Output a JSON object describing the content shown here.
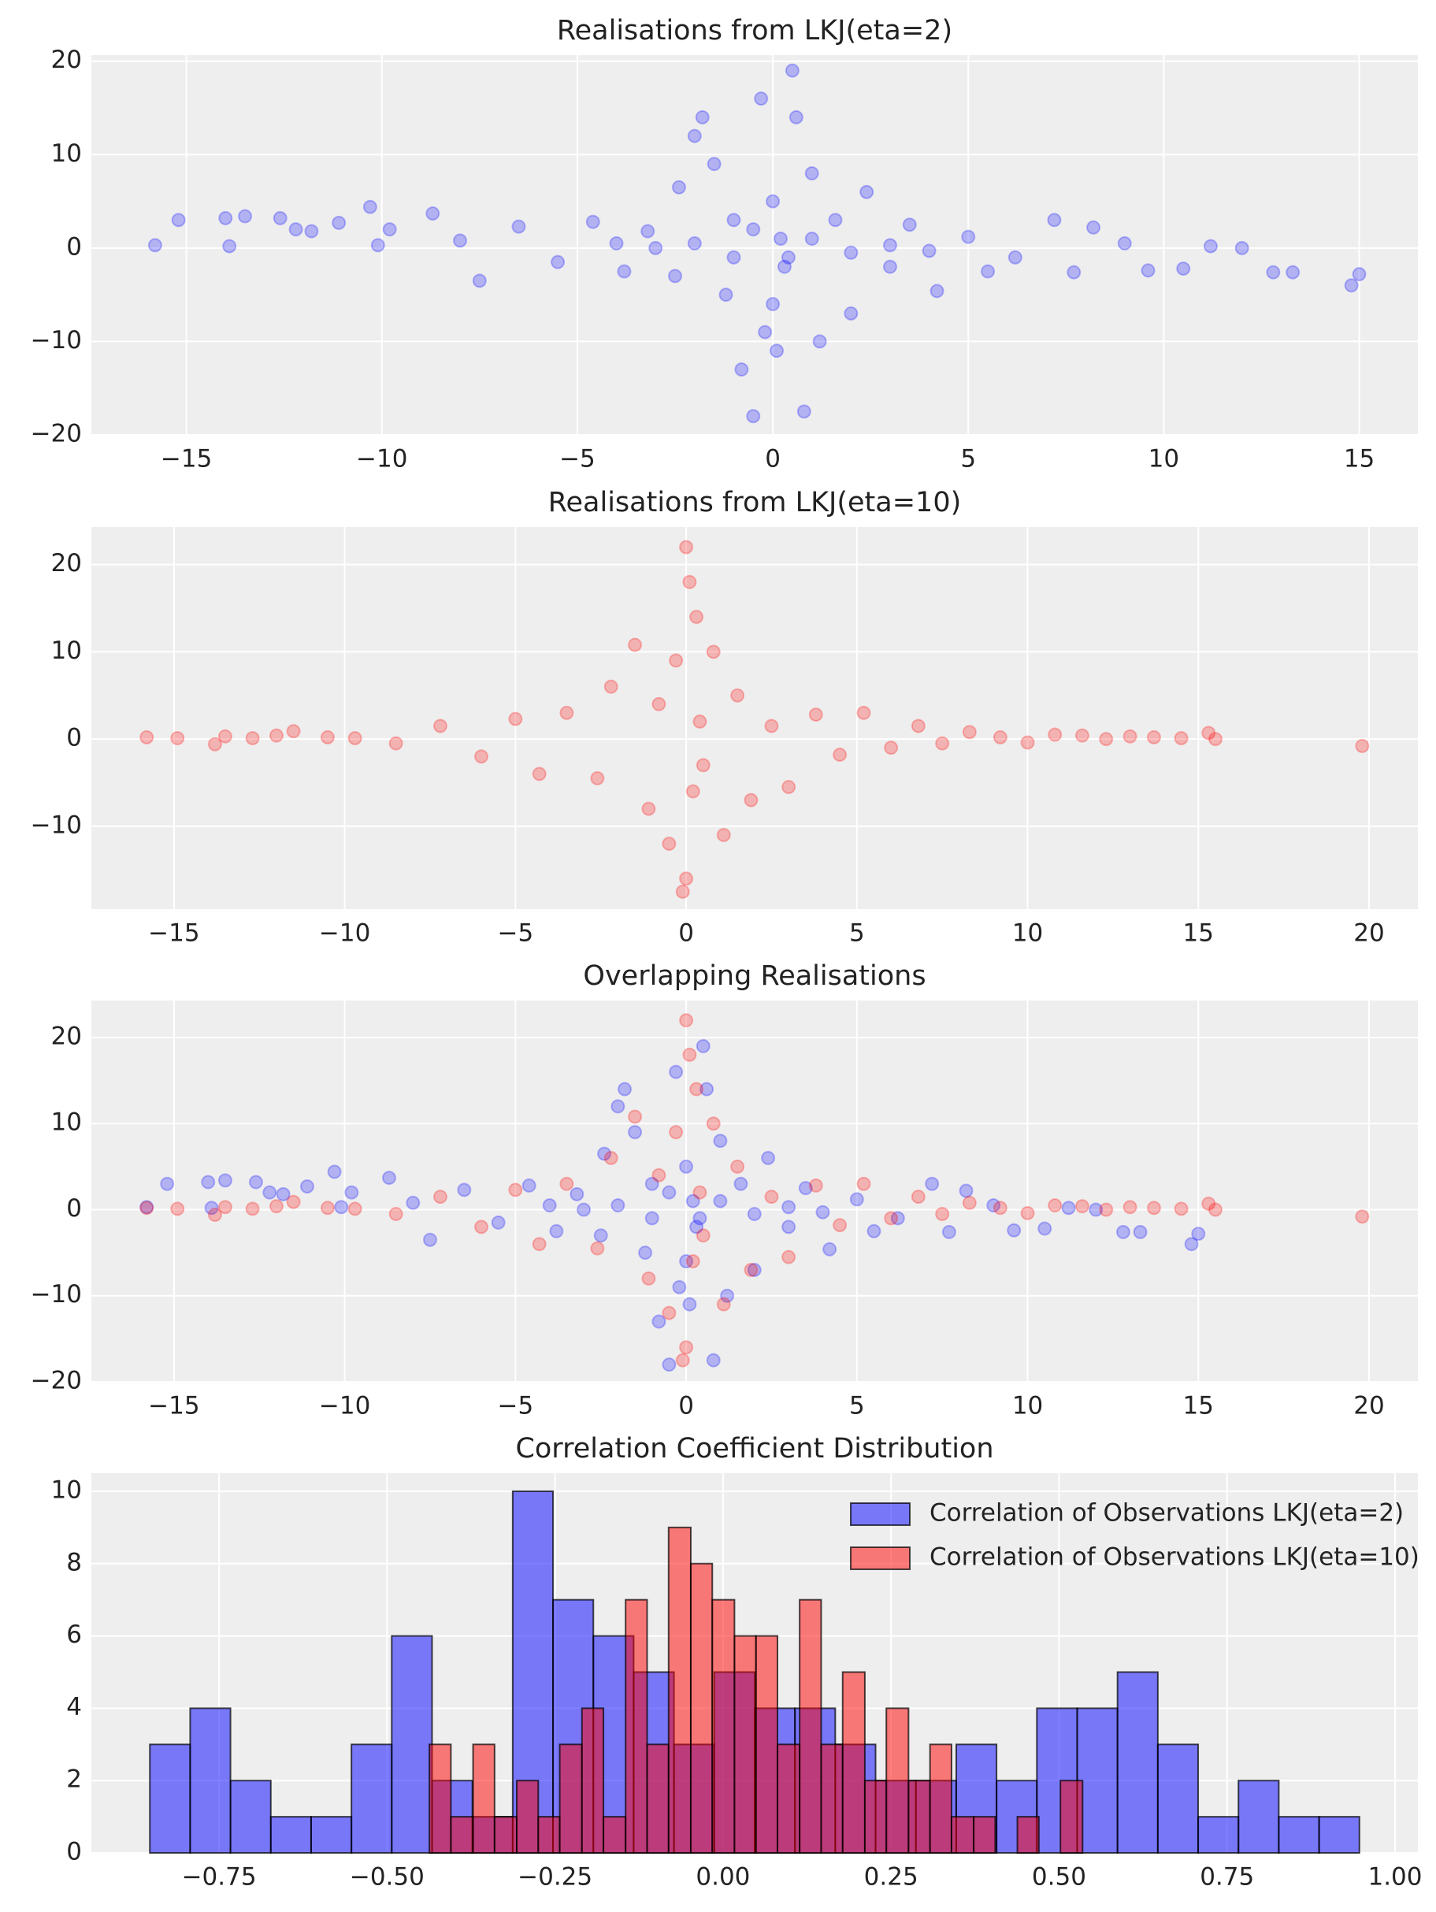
{
  "chart_data": [
    {
      "type": "scatter",
      "title": "Realisations from LKJ(eta=2)",
      "alpha": 0.25,
      "xlim": [
        -17.43,
        16.5
      ],
      "xticks": [
        {
          "value": -15,
          "label": "−15"
        },
        {
          "value": -10,
          "label": "−10"
        },
        {
          "value": -5,
          "label": "−5"
        },
        0,
        5,
        10,
        15
      ],
      "ylim": [
        -20,
        20.65
      ],
      "yticks": [
        {
          "value": -20,
          "label": "−20"
        },
        {
          "value": -10,
          "label": "−10"
        },
        0,
        10,
        20
      ],
      "grid": true,
      "series": [
        {
          "color": "#0000ff",
          "x": [
            -15.8,
            -15.2,
            -14,
            -13.9,
            -13.5,
            -12.6,
            -12.2,
            -11.8,
            -11.1,
            -10.3,
            -10.1,
            -9.8,
            -8.7,
            -8,
            -7.5,
            -6.5,
            -5.5,
            -4.6,
            -3.8,
            -3.2,
            -2.5,
            -2.4,
            -2,
            -1.8,
            -1.5,
            -1.2,
            -1,
            -0.8,
            -0.5,
            -0.3,
            -0.2,
            0,
            0,
            0.1,
            0.2,
            0.3,
            0.5,
            0.6,
            0.8,
            1,
            1.2,
            1.6,
            2,
            2.4,
            3,
            3.5,
            4.2,
            5,
            5.5,
            6.2,
            7.2,
            7.7,
            8.2,
            9,
            9.6,
            10.5,
            11.2,
            12,
            12.8,
            13.3,
            14.8,
            15,
            -0.5,
            0.4,
            -1,
            1,
            -2,
            2,
            -3,
            3,
            -4,
            4
          ],
          "y": [
            0.3,
            3,
            3.2,
            0.2,
            3.4,
            3.2,
            2,
            1.8,
            2.7,
            4.4,
            0.3,
            2,
            3.7,
            0.8,
            -3.5,
            2.3,
            -1.5,
            2.8,
            -2.5,
            1.8,
            -3,
            6.5,
            12,
            14,
            9,
            -5,
            3,
            -13,
            -18,
            16,
            -9,
            5,
            -6,
            -11,
            1,
            -2,
            19,
            14,
            -17.5,
            8,
            -10,
            3,
            -7,
            6,
            -2,
            2.5,
            -4.6,
            1.2,
            -2.5,
            -1,
            3,
            -2.6,
            2.2,
            0.5,
            -2.4,
            -2.2,
            0.2,
            0,
            -2.6,
            -2.6,
            -4,
            -2.8,
            2,
            -1,
            -1,
            1,
            0.5,
            -0.5,
            0,
            0.3,
            0.5,
            -0.3
          ]
        }
      ]
    },
    {
      "type": "scatter",
      "title": "Realisations from LKJ(eta=10)",
      "alpha": 0.25,
      "xlim": [
        -17.42,
        21.43
      ],
      "xticks": [
        {
          "value": -15,
          "label": "−15"
        },
        {
          "value": -10,
          "label": "−10"
        },
        {
          "value": -5,
          "label": "−5"
        },
        0,
        5,
        10,
        15,
        20
      ],
      "ylim": [
        -19.5,
        24.3
      ],
      "yticks": [
        {
          "value": -10,
          "label": "−10"
        },
        0,
        10,
        20
      ],
      "grid": true,
      "series": [
        {
          "color": "#ff0000",
          "x": [
            -15.8,
            -14.9,
            -13.8,
            -13.5,
            -12.7,
            -12,
            -11.5,
            -10.5,
            -9.7,
            -8.5,
            -7.2,
            -6,
            -5,
            -4.3,
            -3.5,
            -2.6,
            -2.2,
            -1.5,
            -1.1,
            -0.8,
            -0.5,
            -0.3,
            -0.1,
            0,
            0,
            0.1,
            0.2,
            0.3,
            0.4,
            0.5,
            0.8,
            1.1,
            1.5,
            1.9,
            2.5,
            3,
            3.8,
            4.5,
            5.2,
            6,
            6.8,
            7.5,
            8.3,
            9.2,
            10,
            10.8,
            11.6,
            12.3,
            13,
            13.7,
            14.5,
            15.3,
            15.5,
            19.8
          ],
          "y": [
            0.2,
            0.1,
            -0.6,
            0.3,
            0.1,
            0.4,
            0.9,
            0.2,
            0.1,
            -0.5,
            1.5,
            -2,
            2.3,
            -4,
            3,
            -4.5,
            6,
            10.8,
            -8,
            4,
            -12,
            9,
            -17.5,
            22,
            -16,
            18,
            -6,
            14,
            2,
            -3,
            10,
            -11,
            5,
            -7,
            1.5,
            -5.5,
            2.8,
            -1.8,
            3,
            -1,
            1.5,
            -0.5,
            0.8,
            0.2,
            -0.4,
            0.5,
            0.4,
            0,
            0.3,
            0.2,
            0.1,
            0.7,
            0,
            -0.8
          ]
        }
      ]
    },
    {
      "type": "scatter",
      "title": "Overlapping Realisations",
      "alpha": 0.25,
      "xlim": [
        -17.42,
        21.43
      ],
      "xticks": [
        {
          "value": -15,
          "label": "−15"
        },
        {
          "value": -10,
          "label": "−10"
        },
        {
          "value": -5,
          "label": "−5"
        },
        0,
        5,
        10,
        15,
        20
      ],
      "ylim": [
        -20,
        24.3
      ],
      "yticks": [
        {
          "value": -20,
          "label": "−20"
        },
        {
          "value": -10,
          "label": "−10"
        },
        0,
        10,
        20
      ],
      "grid": true,
      "series": [
        {
          "color": "#0000ff",
          "x": [
            -15.8,
            -15.2,
            -14,
            -13.9,
            -13.5,
            -12.6,
            -12.2,
            -11.8,
            -11.1,
            -10.3,
            -10.1,
            -9.8,
            -8.7,
            -8,
            -7.5,
            -6.5,
            -5.5,
            -4.6,
            -3.8,
            -3.2,
            -2.5,
            -2.4,
            -2,
            -1.8,
            -1.5,
            -1.2,
            -1,
            -0.8,
            -0.5,
            -0.3,
            -0.2,
            0,
            0,
            0.1,
            0.2,
            0.3,
            0.5,
            0.6,
            0.8,
            1,
            1.2,
            1.6,
            2,
            2.4,
            3,
            3.5,
            4.2,
            5,
            5.5,
            6.2,
            7.2,
            7.7,
            8.2,
            9,
            9.6,
            10.5,
            11.2,
            12,
            12.8,
            13.3,
            14.8,
            15,
            -0.5,
            0.4,
            -1,
            1,
            -2,
            2,
            -3,
            3,
            -4,
            4
          ],
          "y": [
            0.3,
            3,
            3.2,
            0.2,
            3.4,
            3.2,
            2,
            1.8,
            2.7,
            4.4,
            0.3,
            2,
            3.7,
            0.8,
            -3.5,
            2.3,
            -1.5,
            2.8,
            -2.5,
            1.8,
            -3,
            6.5,
            12,
            14,
            9,
            -5,
            3,
            -13,
            -18,
            16,
            -9,
            5,
            -6,
            -11,
            1,
            -2,
            19,
            14,
            -17.5,
            8,
            -10,
            3,
            -7,
            6,
            -2,
            2.5,
            -4.6,
            1.2,
            -2.5,
            -1,
            3,
            -2.6,
            2.2,
            0.5,
            -2.4,
            -2.2,
            0.2,
            0,
            -2.6,
            -2.6,
            -4,
            -2.8,
            2,
            -1,
            -1,
            1,
            0.5,
            -0.5,
            0,
            0.3,
            0.5,
            -0.3
          ]
        },
        {
          "color": "#ff0000",
          "x": [
            -15.8,
            -14.9,
            -13.8,
            -13.5,
            -12.7,
            -12,
            -11.5,
            -10.5,
            -9.7,
            -8.5,
            -7.2,
            -6,
            -5,
            -4.3,
            -3.5,
            -2.6,
            -2.2,
            -1.5,
            -1.1,
            -0.8,
            -0.5,
            -0.3,
            -0.1,
            0,
            0,
            0.1,
            0.2,
            0.3,
            0.4,
            0.5,
            0.8,
            1.1,
            1.5,
            1.9,
            2.5,
            3,
            3.8,
            4.5,
            5.2,
            6,
            6.8,
            7.5,
            8.3,
            9.2,
            10,
            10.8,
            11.6,
            12.3,
            13,
            13.7,
            14.5,
            15.3,
            15.5,
            19.8
          ],
          "y": [
            0.2,
            0.1,
            -0.6,
            0.3,
            0.1,
            0.4,
            0.9,
            0.2,
            0.1,
            -0.5,
            1.5,
            -2,
            2.3,
            -4,
            3,
            -4.5,
            6,
            10.8,
            -8,
            4,
            -12,
            9,
            -17.5,
            22,
            -16,
            18,
            -6,
            14,
            2,
            -3,
            10,
            -11,
            5,
            -7,
            1.5,
            -5.5,
            2.8,
            -1.8,
            3,
            -1,
            1.5,
            -0.5,
            0.8,
            0.2,
            -0.4,
            0.5,
            0.4,
            0,
            0.3,
            0.2,
            0.1,
            0.7,
            0,
            -0.8
          ]
        }
      ]
    },
    {
      "type": "histogram",
      "title": "Correlation Coefficient Distribution",
      "alpha": 0.5,
      "legend": "upper right",
      "xlim": [
        -0.94,
        1.034
      ],
      "xticks": [
        {
          "value": -0.75,
          "label": "−0.75"
        },
        {
          "value": -0.5,
          "label": "−0.50"
        },
        {
          "value": -0.25,
          "label": "−0.25"
        },
        {
          "value": 0,
          "label": "0.00"
        },
        0.25,
        {
          "value": 0.5,
          "label": "0.50"
        },
        0.75,
        {
          "value": 1,
          "label": "1.00"
        }
      ],
      "ylim": [
        0,
        10.5
      ],
      "yticks": [
        0,
        2,
        4,
        6,
        8,
        10
      ],
      "grid": true,
      "series": [
        {
          "name": "Correlation of Observations LKJ(eta=2)",
          "color": "#0000ff",
          "bins": [
            -0.853,
            -0.793,
            -0.733,
            -0.673,
            -0.613,
            -0.553,
            -0.493,
            -0.433,
            -0.373,
            -0.313,
            -0.253,
            -0.193,
            -0.133,
            -0.073,
            -0.013,
            0.047,
            0.107,
            0.167,
            0.227,
            0.287,
            0.347,
            0.407,
            0.467,
            0.527,
            0.587,
            0.647,
            0.707,
            0.767,
            0.827,
            0.887,
            0.947
          ],
          "values": [
            3,
            4,
            2,
            1,
            1,
            3,
            6,
            2,
            1,
            10,
            7,
            6,
            5,
            3,
            5,
            4,
            4,
            3,
            2,
            2,
            3,
            2,
            4,
            4,
            5,
            3,
            1,
            2,
            1,
            1
          ]
        },
        {
          "name": "Correlation of Observations LKJ(eta=10)",
          "color": "#ff0000",
          "bins": [
            -0.437,
            -0.405,
            -0.372,
            -0.34,
            -0.307,
            -0.275,
            -0.243,
            -0.21,
            -0.178,
            -0.145,
            -0.113,
            -0.081,
            -0.048,
            -0.016,
            0.017,
            0.049,
            0.081,
            0.114,
            0.146,
            0.178,
            0.211,
            0.243,
            0.276,
            0.308,
            0.34,
            0.373,
            0.405,
            0.438,
            0.47,
            0.502,
            0.535
          ],
          "values": [
            3,
            1,
            3,
            1,
            2,
            1,
            3,
            4,
            1,
            7,
            3,
            9,
            8,
            7,
            6,
            6,
            3,
            7,
            3,
            5,
            2,
            4,
            2,
            3,
            1,
            1,
            0,
            1,
            0,
            2
          ]
        }
      ]
    }
  ]
}
